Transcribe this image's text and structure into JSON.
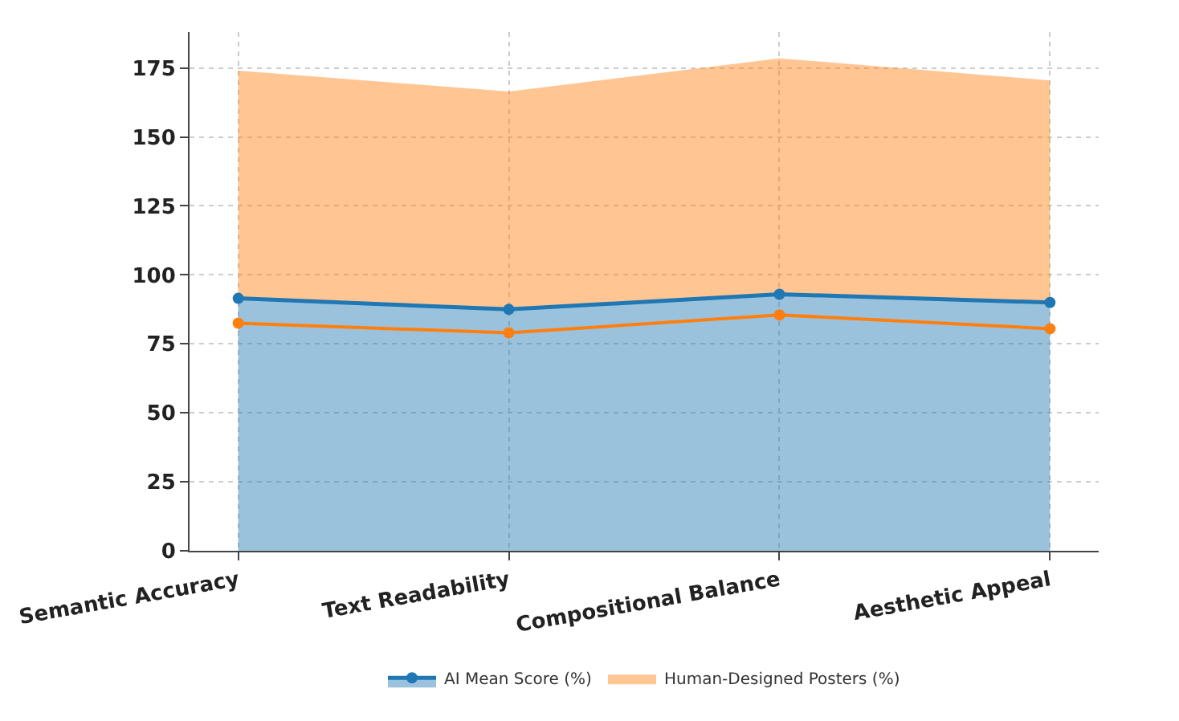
{
  "chart_data": {
    "type": "area",
    "stacked": true,
    "categories": [
      "Semantic Accuracy",
      "Text Readability",
      "Compositional Balance",
      "Aesthetic Appeal"
    ],
    "series": [
      {
        "name": "AI Mean Score (%)",
        "color": "#1f77b4",
        "marker": "circle",
        "values": [
          91.5,
          87.5,
          93,
          90
        ]
      },
      {
        "name": "Human-Designed Posters (%)",
        "color": "#ff7f0e",
        "values": [
          82.5,
          79,
          85.5,
          80.5
        ]
      },
      {
        "type": "line",
        "color": "#ff7f0e",
        "marker": "circle",
        "values": [
          82.5,
          79,
          85.5,
          80.5
        ]
      }
    ],
    "ylim": [
      0,
      188
    ],
    "yticks": [
      0,
      25,
      50,
      75,
      100,
      125,
      150,
      175
    ],
    "grid": true,
    "legend": "bottom",
    "line_style": "solid"
  }
}
